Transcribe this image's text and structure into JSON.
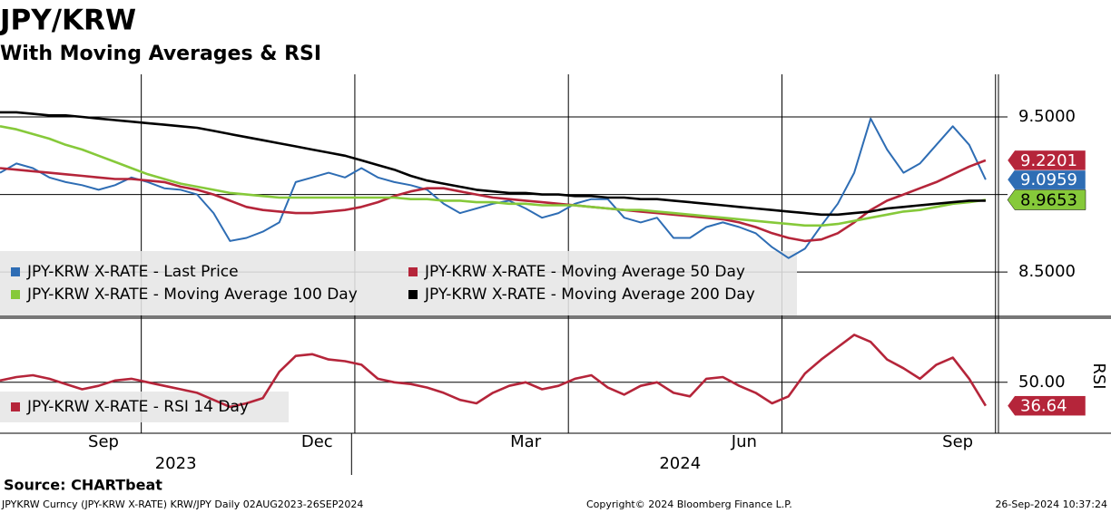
{
  "chart_data": [
    {
      "type": "line",
      "title": "JPY/KRW",
      "subtitle": "With Moving Averages & RSI",
      "xlim": [
        0,
        61
      ],
      "xticks": [
        {
          "value": 6.3,
          "label": "Sep"
        },
        {
          "value": 19.3,
          "label": "Dec"
        },
        {
          "value": 32.0,
          "label": "Mar"
        },
        {
          "value": 45.3,
          "label": "Jun"
        },
        {
          "value": 58.3,
          "label": "Sep"
        }
      ],
      "xgrid": [
        8.6,
        21.6,
        34.6,
        47.6,
        60.6
      ],
      "year_labels": [
        {
          "value": 10.7,
          "label": "2023"
        },
        {
          "value": 41.4,
          "label": "2024"
        }
      ],
      "year_separator": 21.4,
      "ylim": [
        8.22,
        9.775
      ],
      "yticks": [
        {
          "value": 8.5,
          "label": "8.5000"
        },
        {
          "value": 9.0,
          "label": null
        },
        {
          "value": 9.5,
          "label": "9.5000"
        }
      ],
      "grid": true,
      "series": [
        {
          "name": "JPY-KRW X-RATE - Last Price",
          "color": "#2e6db4",
          "last_value_tag": true,
          "values": [
            9.14,
            9.2,
            9.17,
            9.11,
            9.08,
            9.06,
            9.03,
            9.06,
            9.11,
            9.08,
            9.04,
            9.03,
            9.0,
            8.88,
            8.7,
            8.72,
            8.76,
            8.82,
            9.08,
            9.11,
            9.14,
            9.11,
            9.17,
            9.11,
            9.08,
            9.06,
            9.03,
            8.94,
            8.88,
            8.91,
            8.94,
            8.96,
            8.91,
            8.85,
            8.88,
            8.94,
            8.97,
            8.97,
            8.85,
            8.82,
            8.85,
            8.72,
            8.72,
            8.79,
            8.82,
            8.79,
            8.75,
            8.66,
            8.59,
            8.65,
            8.8,
            8.94,
            9.14,
            9.49,
            9.29,
            9.14,
            9.2,
            9.32,
            9.44,
            9.32,
            9.0959
          ]
        },
        {
          "name": "JPY-KRW X-RATE - Moving Average 50 Day",
          "color": "#b5253a",
          "last_value_tag": true,
          "values": [
            9.17,
            9.16,
            9.15,
            9.14,
            9.13,
            9.12,
            9.11,
            9.1,
            9.1,
            9.09,
            9.08,
            9.05,
            9.03,
            9.0,
            8.96,
            8.92,
            8.9,
            8.89,
            8.88,
            8.88,
            8.89,
            8.9,
            8.92,
            8.95,
            8.99,
            9.02,
            9.04,
            9.04,
            9.02,
            9.0,
            8.98,
            8.97,
            8.96,
            8.95,
            8.94,
            8.93,
            8.92,
            8.91,
            8.9,
            8.89,
            8.88,
            8.87,
            8.86,
            8.85,
            8.84,
            8.82,
            8.79,
            8.75,
            8.72,
            8.7,
            8.71,
            8.75,
            8.82,
            8.9,
            8.96,
            9.0,
            9.04,
            9.08,
            9.13,
            9.18,
            9.2201
          ]
        },
        {
          "name": "JPY-KRW X-RATE - Moving Average 100 Day",
          "color": "#86c93a",
          "last_value_tag": true,
          "values": [
            9.44,
            9.42,
            9.39,
            9.36,
            9.32,
            9.29,
            9.25,
            9.21,
            9.17,
            9.13,
            9.1,
            9.07,
            9.05,
            9.03,
            9.01,
            9.0,
            8.99,
            8.98,
            8.98,
            8.98,
            8.98,
            8.98,
            8.98,
            8.98,
            8.98,
            8.97,
            8.97,
            8.96,
            8.96,
            8.95,
            8.95,
            8.94,
            8.94,
            8.93,
            8.93,
            8.93,
            8.92,
            8.91,
            8.9,
            8.9,
            8.89,
            8.88,
            8.87,
            8.86,
            8.85,
            8.84,
            8.83,
            8.82,
            8.81,
            8.8,
            8.8,
            8.81,
            8.83,
            8.85,
            8.87,
            8.89,
            8.9,
            8.92,
            8.94,
            8.95,
            8.9653
          ]
        },
        {
          "name": "JPY-KRW X-RATE - Moving Average 200 Day",
          "color": "#000000",
          "last_value_tag": false,
          "values": [
            9.53,
            9.53,
            9.52,
            9.51,
            9.51,
            9.5,
            9.49,
            9.48,
            9.47,
            9.46,
            9.45,
            9.44,
            9.43,
            9.41,
            9.39,
            9.37,
            9.35,
            9.33,
            9.31,
            9.29,
            9.27,
            9.25,
            9.22,
            9.19,
            9.16,
            9.12,
            9.09,
            9.07,
            9.05,
            9.03,
            9.02,
            9.01,
            9.01,
            9.0,
            9.0,
            8.99,
            8.99,
            8.98,
            8.98,
            8.97,
            8.97,
            8.96,
            8.95,
            8.94,
            8.93,
            8.92,
            8.91,
            8.9,
            8.89,
            8.88,
            8.87,
            8.87,
            8.88,
            8.89,
            8.91,
            8.92,
            8.93,
            8.94,
            8.95,
            8.96,
            8.96
          ]
        }
      ]
    },
    {
      "type": "line",
      "ylabel": "RSI",
      "ylim": [
        21,
        86
      ],
      "yticks": [
        {
          "value": 50,
          "label": "50.00"
        }
      ],
      "grid": true,
      "series": [
        {
          "name": "JPY-KRW X-RATE - RSI 14 Day",
          "color": "#b5253a",
          "last_value_tag": true,
          "values": [
            51,
            53,
            54,
            52,
            49,
            46,
            48,
            51,
            52,
            50,
            48,
            46,
            44,
            40,
            36,
            38,
            41,
            56,
            65,
            66,
            63,
            62,
            60,
            52,
            50,
            49,
            47,
            44,
            40,
            38,
            44,
            48,
            50,
            46,
            48,
            52,
            54,
            47,
            43,
            48,
            50,
            44,
            42,
            52,
            53,
            48,
            44,
            38,
            42,
            55,
            63,
            70,
            77,
            73,
            63,
            58,
            52,
            60,
            64,
            52,
            36.64
          ]
        }
      ]
    }
  ],
  "footer": {
    "source": "Source: CHARTbeat",
    "info": "JPYKRW Curncy (JPY-KRW X-RATE) KRW/JPY  Daily 02AUG2023-26SEP2024",
    "copyright": "Copyright© 2024 Bloomberg Finance L.P.",
    "timestamp": "26-Sep-2024 10:37:24"
  }
}
